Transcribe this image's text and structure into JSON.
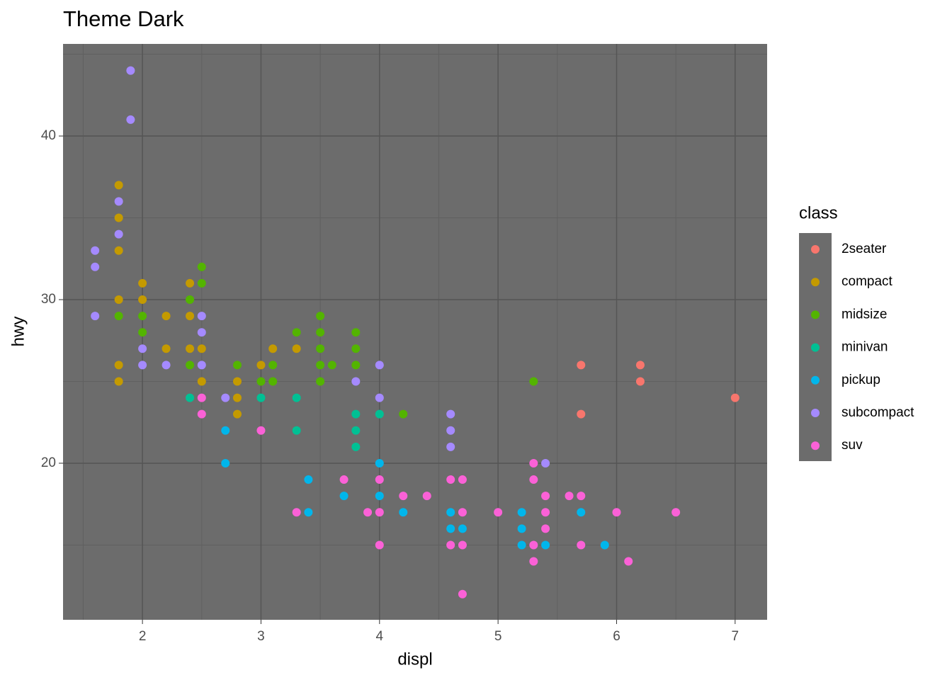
{
  "chart_data": {
    "type": "scatter",
    "title": "Theme Dark",
    "x_label": "displ",
    "y_label": "hwy",
    "legend_title": "class",
    "legend_position": "right",
    "grid": true,
    "xlim": [
      1.33,
      7.27
    ],
    "ylim": [
      10.43,
      45.63
    ],
    "xticks": [
      2,
      3,
      4,
      5,
      6,
      7
    ],
    "yticks": [
      20,
      30,
      40
    ],
    "xminor": [
      1.5,
      2.5,
      3.5,
      4.5,
      5.5,
      6.5
    ],
    "yminor": [
      15,
      25,
      35,
      45
    ],
    "series": [
      {
        "name": "2seater",
        "color": "#F8766D",
        "x": [
          5.7,
          5.7,
          6.2,
          6.2,
          7.0
        ],
        "values": [
          26,
          23,
          26,
          25,
          24
        ]
      },
      {
        "name": "compact",
        "color": "#C49A00",
        "x": [
          1.8,
          1.8,
          1.8,
          1.8,
          1.8,
          1.8,
          2.0,
          2.0,
          2.2,
          2.2,
          2.4,
          2.4,
          2.4,
          2.5,
          2.5,
          2.8,
          2.8,
          2.8,
          3.0,
          3.1,
          3.3
        ],
        "values": [
          37,
          35,
          33,
          30,
          26,
          25,
          31,
          30,
          29,
          27,
          31,
          29,
          27,
          27,
          25,
          25,
          24,
          23,
          26,
          27,
          27
        ]
      },
      {
        "name": "midsize",
        "color": "#53B400",
        "x": [
          1.8,
          2.0,
          2.0,
          2.4,
          2.4,
          2.5,
          2.5,
          2.8,
          3.0,
          3.1,
          3.1,
          3.3,
          3.5,
          3.5,
          3.5,
          3.5,
          3.5,
          3.6,
          3.8,
          3.8,
          3.8,
          4.2,
          5.3
        ],
        "values": [
          29,
          29,
          28,
          30,
          26,
          32,
          31,
          26,
          25,
          26,
          25,
          28,
          29,
          28,
          27,
          26,
          25,
          26,
          28,
          27,
          26,
          23,
          25
        ]
      },
      {
        "name": "minivan",
        "color": "#00C094",
        "x": [
          2.4,
          3.0,
          3.3,
          3.3,
          3.8,
          3.8,
          3.8,
          4.0
        ],
        "values": [
          24,
          24,
          24,
          22,
          23,
          22,
          21,
          23
        ]
      },
      {
        "name": "pickup",
        "color": "#00B6EB",
        "x": [
          2.7,
          2.7,
          3.4,
          3.4,
          3.7,
          4.0,
          4.0,
          4.2,
          4.6,
          4.6,
          4.7,
          5.2,
          5.2,
          5.2,
          5.4,
          5.7,
          5.9
        ],
        "values": [
          22,
          20,
          19,
          17,
          18,
          20,
          18,
          17,
          17,
          16,
          16,
          17,
          16,
          15,
          15,
          17,
          15
        ]
      },
      {
        "name": "subcompact",
        "color": "#A58AFF",
        "x": [
          1.6,
          1.6,
          1.6,
          1.8,
          1.8,
          1.9,
          1.9,
          2.0,
          2.0,
          2.2,
          2.5,
          2.5,
          2.5,
          2.7,
          3.8,
          4.0,
          4.0,
          4.6,
          4.6,
          4.6,
          5.4
        ],
        "values": [
          33,
          32,
          29,
          36,
          34,
          44,
          41,
          27,
          26,
          26,
          29,
          28,
          26,
          24,
          25,
          26,
          24,
          23,
          22,
          21,
          20
        ]
      },
      {
        "name": "suv",
        "color": "#FB61D7",
        "x": [
          2.5,
          2.5,
          3.0,
          3.3,
          3.7,
          3.9,
          4.0,
          4.0,
          4.0,
          4.2,
          4.4,
          4.6,
          4.6,
          4.7,
          4.7,
          4.7,
          4.7,
          5.0,
          5.3,
          5.3,
          5.3,
          5.3,
          5.4,
          5.4,
          5.4,
          5.6,
          5.7,
          5.7,
          6.0,
          6.1,
          6.5
        ],
        "values": [
          24,
          23,
          22,
          17,
          19,
          17,
          19,
          17,
          15,
          18,
          18,
          19,
          15,
          19,
          17,
          15,
          12,
          17,
          20,
          19,
          15,
          14,
          18,
          17,
          16,
          18,
          18,
          15,
          17,
          14,
          17
        ]
      }
    ]
  }
}
